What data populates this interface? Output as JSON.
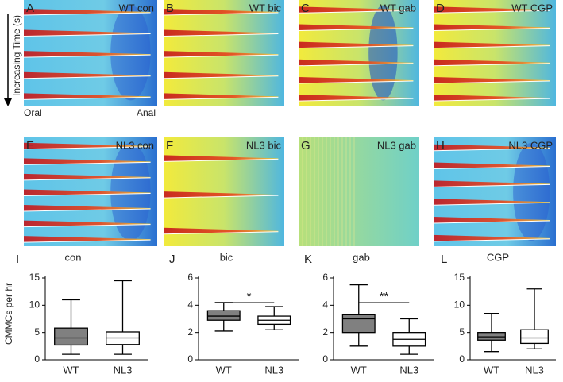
{
  "figure": {
    "time_axis_label": "Increasing Time (s)",
    "oral_label": "Oral",
    "anal_label": "Anal",
    "panels": [
      {
        "letter": "A",
        "label": "WT con"
      },
      {
        "letter": "B",
        "label": "WT bic"
      },
      {
        "letter": "C",
        "label": "WT gab"
      },
      {
        "letter": "D",
        "label": "WT CGP"
      },
      {
        "letter": "E",
        "label": "NL3 con"
      },
      {
        "letter": "F",
        "label": "NL3 bic"
      },
      {
        "letter": "G",
        "label": "NL3 gab"
      },
      {
        "letter": "H",
        "label": "NL3 CGP"
      }
    ]
  },
  "chart_data": [
    {
      "type": "box",
      "letter": "I",
      "title": "con",
      "ylabel": "CMMCs per hr",
      "categories": [
        "WT",
        "NL3"
      ],
      "boxes": [
        {
          "min": 1,
          "q1": 2.7,
          "median": 4,
          "q3": 5.8,
          "max": 11
        },
        {
          "min": 1,
          "q1": 2.8,
          "median": 4,
          "q3": 5.1,
          "max": 14.5
        }
      ],
      "colors": [
        "#808080",
        "#ffffff"
      ],
      "ylim": [
        0,
        15
      ],
      "yticks": [
        0,
        5,
        10,
        15
      ]
    },
    {
      "type": "box",
      "letter": "J",
      "title": "bic",
      "categories": [
        "WT",
        "NL3"
      ],
      "boxes": [
        {
          "min": 2.1,
          "q1": 2.9,
          "median": 3.2,
          "q3": 3.6,
          "max": 4.2
        },
        {
          "min": 2.2,
          "q1": 2.6,
          "median": 2.9,
          "q3": 3.2,
          "max": 3.9
        }
      ],
      "colors": [
        "#808080",
        "#ffffff"
      ],
      "ylim": [
        0,
        6
      ],
      "yticks": [
        0,
        2,
        4,
        6
      ],
      "significance": "*"
    },
    {
      "type": "box",
      "letter": "K",
      "title": "gab",
      "categories": [
        "WT",
        "NL3"
      ],
      "boxes": [
        {
          "min": 1,
          "q1": 2,
          "median": 3,
          "q3": 3.3,
          "max": 5.5
        },
        {
          "min": 0.4,
          "q1": 1,
          "median": 1.5,
          "q3": 2,
          "max": 3
        }
      ],
      "colors": [
        "#808080",
        "#ffffff"
      ],
      "ylim": [
        0,
        6
      ],
      "yticks": [
        0,
        2,
        4,
        6
      ],
      "significance": "**"
    },
    {
      "type": "box",
      "letter": "L",
      "title": "CGP",
      "categories": [
        "WT",
        "NL3"
      ],
      "boxes": [
        {
          "min": 1.5,
          "q1": 3.6,
          "median": 4.2,
          "q3": 5,
          "max": 8.5
        },
        {
          "min": 2,
          "q1": 3,
          "median": 4,
          "q3": 5.5,
          "max": 13
        }
      ],
      "colors": [
        "#808080",
        "#ffffff"
      ],
      "ylim": [
        0,
        15
      ],
      "yticks": [
        0,
        5,
        10,
        15
      ]
    }
  ]
}
